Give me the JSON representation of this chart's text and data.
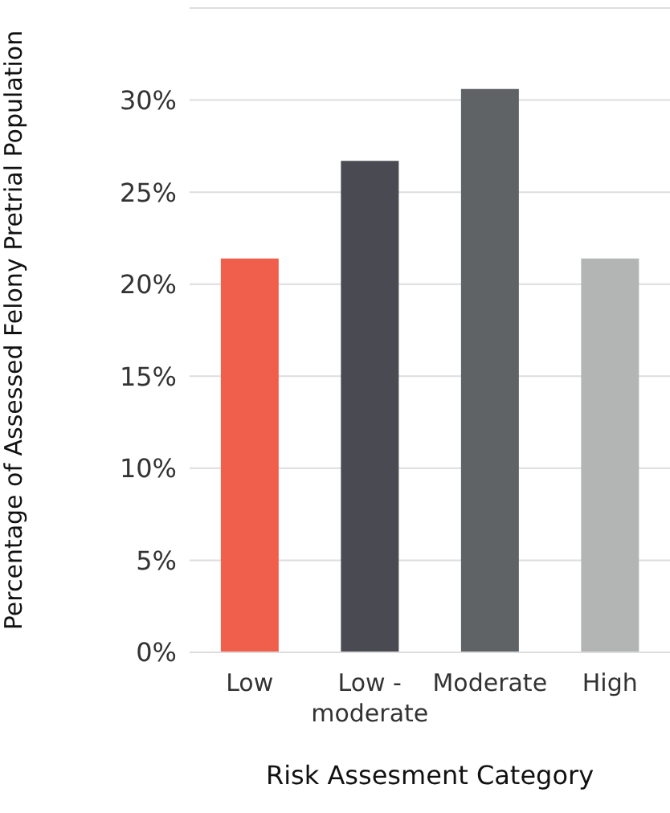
{
  "chart_data": {
    "type": "bar",
    "xlabel": "Risk Assesment Category",
    "ylabel": "Percentage of Assessed Felony Pretrial Population",
    "categories": [
      "Low",
      "Low - moderate",
      "Moderate",
      "High"
    ],
    "values": [
      21.4,
      26.7,
      30.6,
      21.4
    ],
    "colors": [
      "#f05f4b",
      "#4a4a52",
      "#5f6366",
      "#b3b5b5"
    ],
    "ylim": [
      0,
      35
    ],
    "yticks": [
      {
        "value": 0,
        "label": "0%"
      },
      {
        "value": 5,
        "label": "5%"
      },
      {
        "value": 10,
        "label": "10%"
      },
      {
        "value": 15,
        "label": "15%"
      },
      {
        "value": 20,
        "label": "20%"
      },
      {
        "value": 25,
        "label": "25%"
      },
      {
        "value": 30,
        "label": "30%"
      },
      {
        "value": 35,
        "label": null
      }
    ],
    "grid": "y"
  }
}
